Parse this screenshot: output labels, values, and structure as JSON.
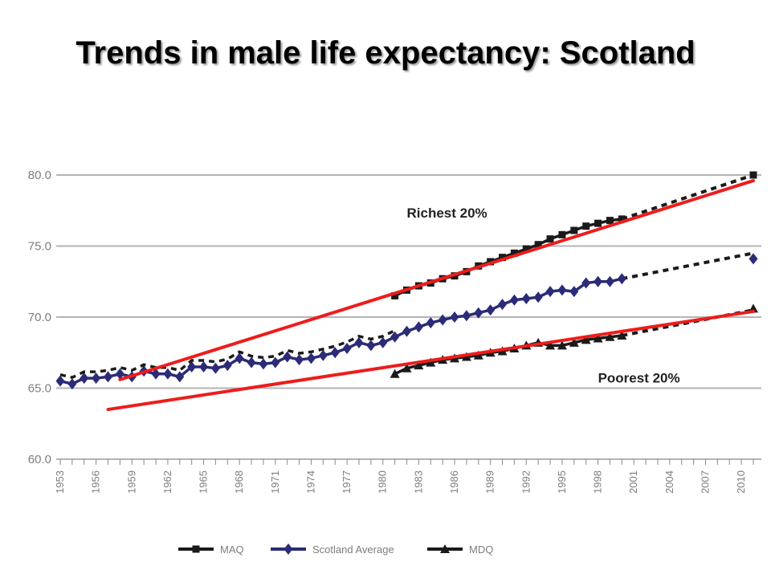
{
  "title": "Trends in male life expectancy: Scotland",
  "chart_data": {
    "type": "line",
    "title": "Trends in male life expectancy: Scotland",
    "ylim": [
      60,
      80
    ],
    "yticks": [
      "60.0",
      "65.0",
      "70.0",
      "75.0",
      "80.0"
    ],
    "xlim": [
      1953,
      2011
    ],
    "xticks": [
      "1953",
      "1956",
      "1959",
      "1962",
      "1965",
      "1968",
      "1971",
      "1974",
      "1977",
      "1980",
      "1983",
      "1986",
      "1989",
      "1992",
      "1995",
      "1998",
      "2001",
      "2004",
      "2007",
      "2010"
    ],
    "grid": true,
    "legend": "bottom",
    "series": [
      {
        "name": "MAQ",
        "color": "#1a1a1a",
        "marker": "square",
        "points": [
          [
            1981,
            71.5
          ],
          [
            1982,
            71.9
          ],
          [
            1983,
            72.2
          ],
          [
            1984,
            72.4
          ],
          [
            1985,
            72.7
          ],
          [
            1986,
            72.9
          ],
          [
            1987,
            73.2
          ],
          [
            1988,
            73.6
          ],
          [
            1989,
            73.9
          ],
          [
            1990,
            74.2
          ],
          [
            1991,
            74.5
          ],
          [
            1992,
            74.8
          ],
          [
            1993,
            75.1
          ],
          [
            1994,
            75.5
          ],
          [
            1995,
            75.8
          ],
          [
            1996,
            76.1
          ],
          [
            1997,
            76.4
          ],
          [
            1998,
            76.6
          ],
          [
            1999,
            76.8
          ],
          [
            2000,
            76.9
          ]
        ],
        "projection": [
          [
            2000,
            76.9
          ],
          [
            2011,
            80.0
          ]
        ]
      },
      {
        "name": "Scotland Average",
        "color": "#2b2b78",
        "marker": "diamond",
        "points": [
          [
            1953,
            65.5
          ],
          [
            1954,
            65.3
          ],
          [
            1955,
            65.7
          ],
          [
            1956,
            65.7
          ],
          [
            1957,
            65.8
          ],
          [
            1958,
            66.0
          ],
          [
            1959,
            65.8
          ],
          [
            1960,
            66.2
          ],
          [
            1961,
            66.0
          ],
          [
            1962,
            66.0
          ],
          [
            1963,
            65.8
          ],
          [
            1964,
            66.5
          ],
          [
            1965,
            66.5
          ],
          [
            1966,
            66.4
          ],
          [
            1967,
            66.6
          ],
          [
            1968,
            67.1
          ],
          [
            1969,
            66.8
          ],
          [
            1970,
            66.7
          ],
          [
            1971,
            66.8
          ],
          [
            1972,
            67.2
          ],
          [
            1973,
            67.0
          ],
          [
            1974,
            67.1
          ],
          [
            1975,
            67.3
          ],
          [
            1976,
            67.5
          ],
          [
            1977,
            67.8
          ],
          [
            1978,
            68.2
          ],
          [
            1979,
            68.0
          ],
          [
            1980,
            68.2
          ],
          [
            1981,
            68.6
          ],
          [
            1982,
            69.0
          ],
          [
            1983,
            69.3
          ],
          [
            1984,
            69.6
          ],
          [
            1985,
            69.8
          ],
          [
            1986,
            70.0
          ],
          [
            1987,
            70.1
          ],
          [
            1988,
            70.3
          ],
          [
            1989,
            70.5
          ],
          [
            1990,
            70.9
          ],
          [
            1991,
            71.2
          ],
          [
            1992,
            71.3
          ],
          [
            1993,
            71.4
          ],
          [
            1994,
            71.8
          ],
          [
            1995,
            71.9
          ],
          [
            1996,
            71.8
          ],
          [
            1997,
            72.4
          ],
          [
            1998,
            72.5
          ],
          [
            1999,
            72.5
          ],
          [
            2000,
            72.7
          ]
        ],
        "projection": [
          [
            2000,
            72.7
          ],
          [
            2011,
            74.5
          ]
        ],
        "end_point": [
          2011,
          74.1
        ]
      },
      {
        "name": "MDQ",
        "color": "#1a1a1a",
        "marker": "triangle",
        "points": [
          [
            1981,
            66.0
          ],
          [
            1982,
            66.4
          ],
          [
            1983,
            66.6
          ],
          [
            1984,
            66.8
          ],
          [
            1985,
            67.0
          ],
          [
            1986,
            67.1
          ],
          [
            1987,
            67.2
          ],
          [
            1988,
            67.3
          ],
          [
            1989,
            67.5
          ],
          [
            1990,
            67.6
          ],
          [
            1991,
            67.8
          ],
          [
            1992,
            68.0
          ],
          [
            1993,
            68.2
          ],
          [
            1994,
            68.0
          ],
          [
            1995,
            68.0
          ],
          [
            1996,
            68.2
          ],
          [
            1997,
            68.4
          ],
          [
            1998,
            68.5
          ],
          [
            1999,
            68.6
          ],
          [
            2000,
            68.7
          ]
        ],
        "projection": [
          [
            2000,
            68.7
          ],
          [
            2011,
            70.5
          ]
        ],
        "end_point": [
          2011,
          70.6
        ]
      }
    ],
    "trend_lines": [
      {
        "color": "#ee1c1c",
        "from": [
          1958,
          65.6
        ],
        "to": [
          2011,
          79.6
        ]
      },
      {
        "color": "#ee1c1c",
        "from": [
          1957,
          63.5
        ],
        "to": [
          2011,
          70.4
        ]
      }
    ],
    "annotations": [
      {
        "text": "Richest 20%",
        "x": 1982,
        "y": 77.0
      },
      {
        "text": "Poorest 20%",
        "x": 1998,
        "y": 65.4
      }
    ]
  }
}
